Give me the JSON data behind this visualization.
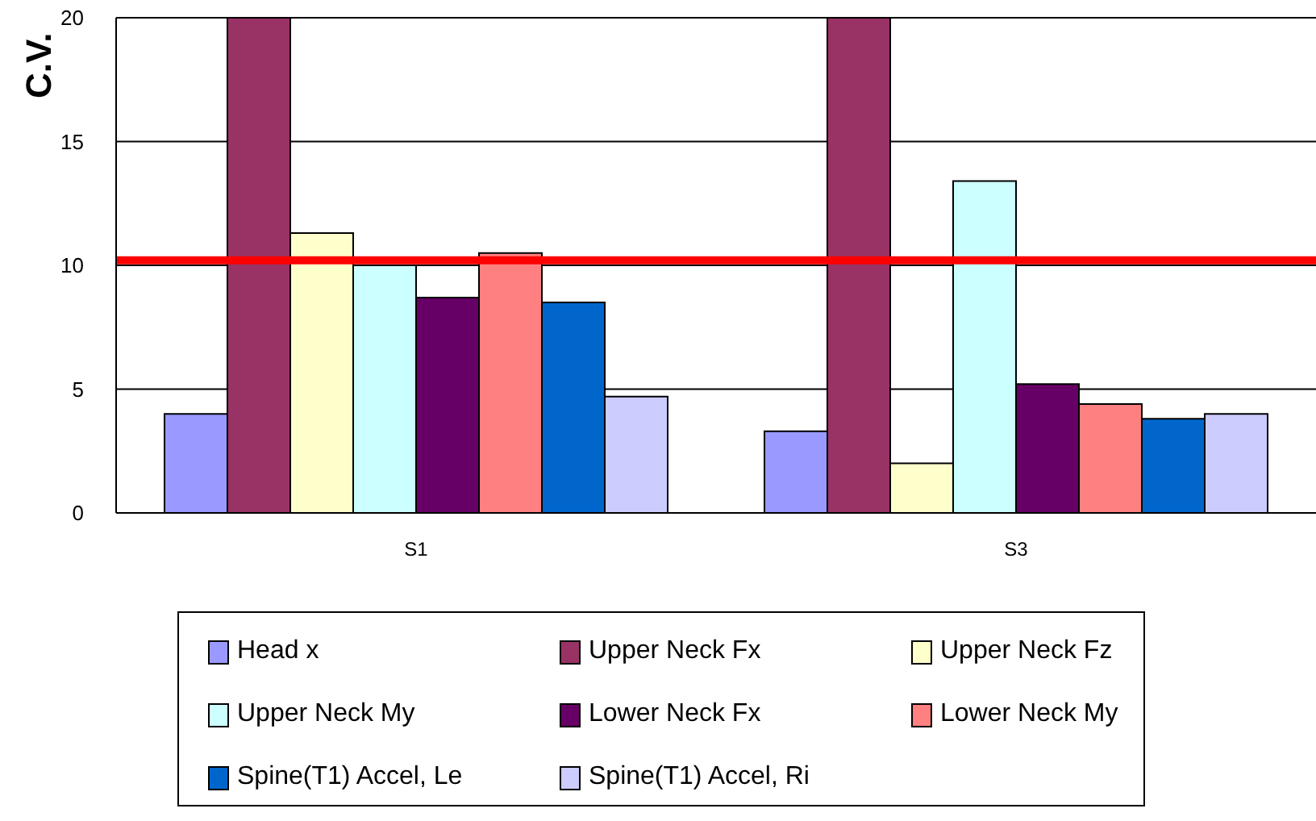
{
  "chart_data": {
    "type": "bar",
    "ylabel": "C.V.",
    "categories": [
      "S1",
      "S3"
    ],
    "series": [
      {
        "name": "Head x",
        "color": "#9999ff",
        "values": [
          4.0,
          3.3
        ]
      },
      {
        "name": "Upper Neck Fx",
        "color": "#993366",
        "values": [
          20,
          20
        ]
      },
      {
        "name": "Upper Neck Fz",
        "color": "#ffffcc",
        "values": [
          11.3,
          2.0
        ]
      },
      {
        "name": "Upper Neck My",
        "color": "#ccffff",
        "values": [
          10.0,
          13.4
        ]
      },
      {
        "name": "Lower Neck Fx",
        "color": "#660066",
        "values": [
          8.7,
          5.2
        ]
      },
      {
        "name": "Lower Neck My",
        "color": "#ff8080",
        "values": [
          10.5,
          4.4
        ]
      },
      {
        "name": "Spine(T1) Accel, Le",
        "color": "#0066cc",
        "values": [
          8.5,
          3.8
        ]
      },
      {
        "name": "Spine(T1) Accel, Ri",
        "color": "#ccccff",
        "values": [
          4.7,
          4.0
        ]
      }
    ],
    "ylim": [
      0,
      20
    ],
    "yticks": [
      0,
      5,
      10,
      15,
      20
    ],
    "grid": "y",
    "legend": "bottom",
    "ref_lines": [
      {
        "axis": "y",
        "value": 10.2,
        "color": "#ff0000"
      }
    ]
  }
}
